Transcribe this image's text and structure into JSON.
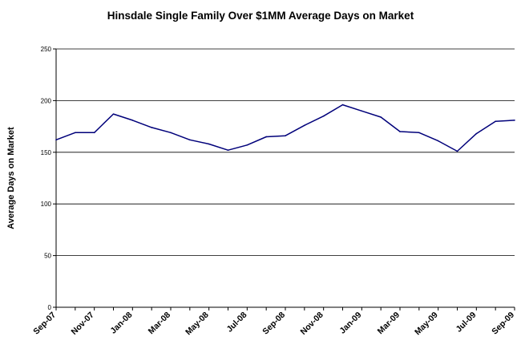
{
  "chart_data": {
    "type": "line",
    "title": "Hinsdale Single Family Over $1MM Average Days on Market",
    "xlabel": "",
    "ylabel": "Average Days on Market",
    "ylim": [
      0,
      250
    ],
    "y_ticks": [
      "0",
      "50",
      "100",
      "150",
      "200",
      "250"
    ],
    "grid": true,
    "legend": "none",
    "x_tick_labels": [
      "Sep-07",
      "Nov-07",
      "Jan-08",
      "Mar-08",
      "May-08",
      "Jul-08",
      "Sep-08",
      "Nov-08",
      "Jan-09",
      "Mar-09",
      "May-09",
      "Jul-09",
      "Sep-09"
    ],
    "x": [
      "Sep-07",
      "Oct-07",
      "Nov-07",
      "Dec-07",
      "Jan-08",
      "Feb-08",
      "Mar-08",
      "Apr-08",
      "May-08",
      "Jun-08",
      "Jul-08",
      "Aug-08",
      "Sep-08",
      "Oct-08",
      "Nov-08",
      "Dec-08",
      "Jan-09",
      "Feb-09",
      "Mar-09",
      "Apr-09",
      "May-09",
      "Jun-09",
      "Jul-09",
      "Aug-09",
      "Sep-09"
    ],
    "series": [
      {
        "values": [
          162,
          169,
          169,
          187,
          181,
          174,
          169,
          162,
          158,
          152,
          157,
          165,
          166,
          176,
          185,
          196,
          190,
          184,
          170,
          169,
          161,
          151,
          168,
          180,
          181
        ]
      }
    ],
    "colors": {
      "line": "#00007a",
      "gridline": "#000000",
      "axis": "#000000"
    }
  }
}
